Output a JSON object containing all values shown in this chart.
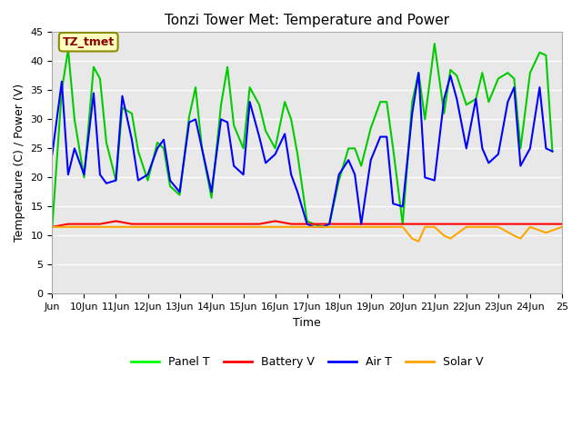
{
  "title": "Tonzi Tower Met: Temperature and Power",
  "xlabel": "Time",
  "ylabel": "Temperature (C) / Power (V)",
  "ylim": [
    0,
    45
  ],
  "yticks": [
    0,
    5,
    10,
    15,
    20,
    25,
    30,
    35,
    40,
    45
  ],
  "x_start": 9,
  "x_end": 25,
  "xtick_positions": [
    9,
    10,
    11,
    12,
    13,
    14,
    15,
    16,
    17,
    18,
    19,
    20,
    21,
    22,
    23,
    24,
    25
  ],
  "legend_labels": [
    "Panel T",
    "Battery V",
    "Air T",
    "Solar V"
  ],
  "legend_colors": [
    "#00FF00",
    "#FF0000",
    "#0000FF",
    "#FFA500"
  ],
  "annotation_text": "TZ_tmet",
  "annotation_color": "#8B0000",
  "annotation_bg": "#FFFFC0",
  "annotation_edge": "#8B8B00",
  "background_color": "#E8E8E8",
  "panel_t_x": [
    9.0,
    9.3,
    9.5,
    9.7,
    10.0,
    10.3,
    10.5,
    10.7,
    11.0,
    11.2,
    11.5,
    11.7,
    12.0,
    12.3,
    12.5,
    12.7,
    13.0,
    13.3,
    13.5,
    13.7,
    14.0,
    14.3,
    14.5,
    14.7,
    15.0,
    15.2,
    15.5,
    15.7,
    16.0,
    16.3,
    16.5,
    16.7,
    17.0,
    17.2,
    17.5,
    17.7,
    18.0,
    18.3,
    18.5,
    18.7,
    19.0,
    19.3,
    19.5,
    19.7,
    20.0,
    20.3,
    20.5,
    20.7,
    21.0,
    21.3,
    21.5,
    21.7,
    22.0,
    22.3,
    22.5,
    22.7,
    23.0,
    23.3,
    23.5,
    23.7,
    24.0,
    24.3,
    24.5,
    24.7
  ],
  "panel_t_y": [
    11.5,
    35.0,
    42.0,
    30.0,
    20.0,
    39.0,
    37.0,
    26.0,
    19.5,
    32.0,
    31.0,
    24.5,
    19.5,
    26.0,
    25.0,
    18.5,
    17.0,
    30.5,
    35.5,
    25.0,
    16.5,
    32.5,
    39.0,
    29.0,
    25.0,
    35.5,
    32.5,
    28.0,
    25.0,
    33.0,
    30.0,
    24.0,
    12.5,
    12.0,
    11.5,
    12.0,
    19.5,
    25.0,
    25.0,
    22.0,
    28.5,
    33.0,
    33.0,
    25.0,
    12.0,
    33.0,
    38.0,
    30.0,
    43.0,
    31.0,
    38.5,
    37.5,
    32.5,
    33.5,
    38.0,
    33.0,
    37.0,
    38.0,
    37.0,
    25.0,
    38.0,
    41.5,
    41.0,
    24.5
  ],
  "panel_t_color": "#00CC00",
  "battery_v_x": [
    9.0,
    9.5,
    10.0,
    10.5,
    11.0,
    11.5,
    12.0,
    12.5,
    13.0,
    13.5,
    14.0,
    14.5,
    15.0,
    15.5,
    16.0,
    16.5,
    17.0,
    17.5,
    18.0,
    18.5,
    19.0,
    19.5,
    20.0,
    20.5,
    21.0,
    21.5,
    22.0,
    22.5,
    23.0,
    23.5,
    24.0,
    24.5,
    25.0
  ],
  "battery_v_y": [
    11.5,
    12.0,
    12.0,
    12.0,
    12.5,
    12.0,
    12.0,
    12.0,
    12.0,
    12.0,
    12.0,
    12.0,
    12.0,
    12.0,
    12.5,
    12.0,
    12.0,
    12.0,
    12.0,
    12.0,
    12.0,
    12.0,
    12.0,
    12.0,
    12.0,
    12.0,
    12.0,
    12.0,
    12.0,
    12.0,
    12.0,
    12.0,
    12.0
  ],
  "battery_v_color": "#FF0000",
  "air_t_x": [
    9.0,
    9.3,
    9.5,
    9.7,
    10.0,
    10.3,
    10.5,
    10.7,
    11.0,
    11.2,
    11.5,
    11.7,
    12.0,
    12.3,
    12.5,
    12.7,
    13.0,
    13.3,
    13.5,
    13.7,
    14.0,
    14.3,
    14.5,
    14.7,
    15.0,
    15.2,
    15.5,
    15.7,
    16.0,
    16.3,
    16.5,
    16.7,
    17.0,
    17.2,
    17.5,
    17.7,
    18.0,
    18.3,
    18.5,
    18.7,
    19.0,
    19.3,
    19.5,
    19.7,
    20.0,
    20.3,
    20.5,
    20.7,
    21.0,
    21.3,
    21.5,
    21.7,
    22.0,
    22.3,
    22.5,
    22.7,
    23.0,
    23.3,
    23.5,
    23.7,
    24.0,
    24.3,
    24.5,
    24.7
  ],
  "air_t_y": [
    24.0,
    36.5,
    20.5,
    25.0,
    20.5,
    34.5,
    20.5,
    19.0,
    19.5,
    34.0,
    26.5,
    19.5,
    20.5,
    25.0,
    26.5,
    19.5,
    17.5,
    29.5,
    30.0,
    25.0,
    17.5,
    30.0,
    29.5,
    22.0,
    20.5,
    33.0,
    27.0,
    22.5,
    24.0,
    27.5,
    20.5,
    17.5,
    12.0,
    11.5,
    11.5,
    12.0,
    20.5,
    23.0,
    20.5,
    12.0,
    23.0,
    27.0,
    27.0,
    15.5,
    15.0,
    31.0,
    38.0,
    20.0,
    19.5,
    33.5,
    37.5,
    33.5,
    25.0,
    33.5,
    25.0,
    22.5,
    24.0,
    33.0,
    35.5,
    22.0,
    25.0,
    35.5,
    25.0,
    24.5
  ],
  "air_t_color": "#0000FF",
  "solar_v_x": [
    9.0,
    9.5,
    10.0,
    10.5,
    11.0,
    11.5,
    12.0,
    12.5,
    13.0,
    13.5,
    14.0,
    14.5,
    15.0,
    15.5,
    16.0,
    16.5,
    17.0,
    17.5,
    18.0,
    18.5,
    19.0,
    19.5,
    20.0,
    20.3,
    20.5,
    20.7,
    21.0,
    21.3,
    21.5,
    22.0,
    22.5,
    23.0,
    23.5,
    23.7,
    24.0,
    24.5,
    25.0
  ],
  "solar_v_y": [
    11.5,
    11.5,
    11.5,
    11.5,
    11.5,
    11.5,
    11.5,
    11.5,
    11.5,
    11.5,
    11.5,
    11.5,
    11.5,
    11.5,
    11.5,
    11.5,
    11.5,
    11.5,
    11.5,
    11.5,
    11.5,
    11.5,
    11.5,
    9.5,
    9.0,
    11.5,
    11.5,
    10.0,
    9.5,
    11.5,
    11.5,
    11.5,
    10.0,
    9.5,
    11.5,
    10.5,
    11.5
  ],
  "solar_v_color": "#FFA500"
}
